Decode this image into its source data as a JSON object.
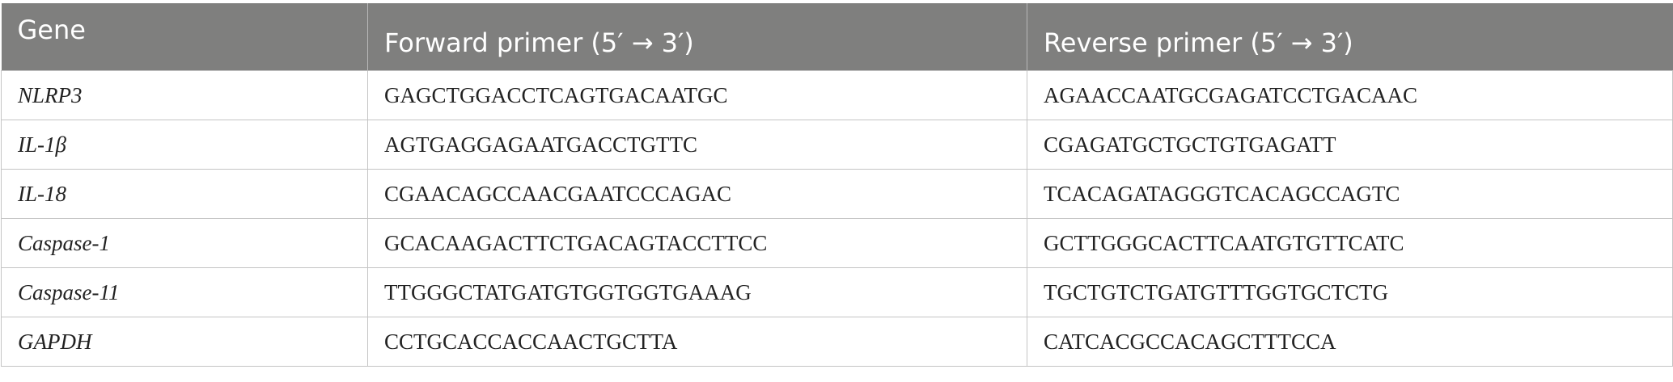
{
  "table": {
    "header": [
      "Gene",
      "Forward primer (5′ → 3′)",
      "Reverse primer (5′ → 3′)"
    ],
    "rows": [
      [
        "NLRP3",
        "GAGCTGGACCTCAGTGACAATGC",
        "AGAACCAATGCGAGATCCTGACAAC"
      ],
      [
        "IL-1β",
        "AGTGAGGAGAATGACCTGTTC",
        "CGAGATGCTGCTGTGAGATT"
      ],
      [
        "IL-18",
        "CGAACAGCCAACGAATCCCAGAC",
        "TCACAGATAGGGTCACAGCCAGTC"
      ],
      [
        "Caspase-1",
        "GCACAAGACTTCTGACAGTACCTTCC",
        "GCTTGGGCACTTCAATGTGTTCATC"
      ],
      [
        "Caspase-11",
        "TTGGGCTATGATGTGGTGGTGAAAG",
        "TGCTGTCTGATGTTTGGTGCTCTG"
      ],
      [
        "GAPDH",
        "CCTGCACCACCAACTGCTTA",
        "CATCACGCCACAGCTTTCCA"
      ]
    ]
  }
}
